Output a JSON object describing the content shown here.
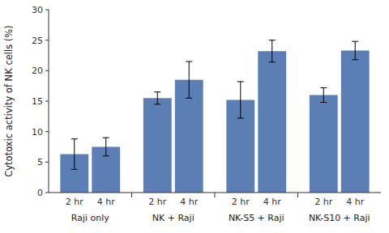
{
  "chart_data": {
    "type": "bar",
    "ylabel": "Cytotoxic activity of NK cells (%)",
    "categories": [
      "Raji only",
      "NK + Raji",
      "NK-S5 + Raji",
      "NK-S10 + Raji"
    ],
    "series": [
      {
        "name": "2 hr",
        "color": "#5b7fb5",
        "values": [
          6.3,
          15.5,
          15.2,
          16.0
        ],
        "errors": [
          2.5,
          1.0,
          3.0,
          1.2
        ]
      },
      {
        "name": "4 hr",
        "color": "#5b7fb5",
        "values": [
          7.5,
          18.5,
          23.2,
          23.3
        ],
        "errors": [
          1.5,
          3.0,
          1.8,
          1.5
        ]
      }
    ],
    "ylim": [
      0,
      30
    ],
    "yticks": [
      0,
      5,
      10,
      15,
      20,
      25,
      30
    ]
  }
}
